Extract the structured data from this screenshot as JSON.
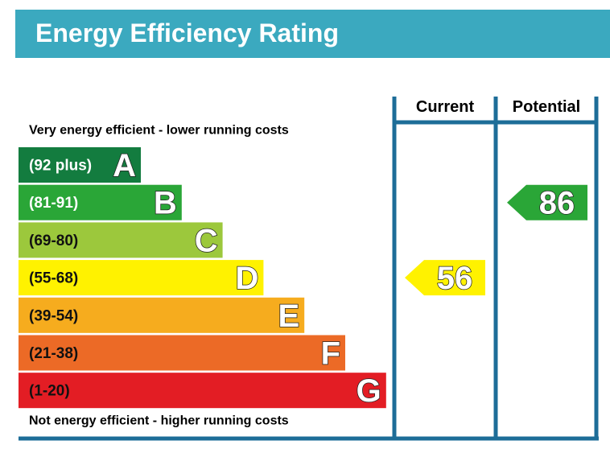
{
  "chart_data": {
    "type": "epc",
    "title": "Energy Efficiency Rating",
    "top_note": "Very energy efficient - lower running costs",
    "bottom_note": "Not energy efficient - higher running costs",
    "columns": [
      "Current",
      "Potential"
    ],
    "bands": [
      {
        "letter": "A",
        "range": "(92 plus)",
        "color": "#137c3f"
      },
      {
        "letter": "B",
        "range": "(81-91)",
        "color": "#2aa637"
      },
      {
        "letter": "C",
        "range": "(69-80)",
        "color": "#9cc83c"
      },
      {
        "letter": "D",
        "range": "(55-68)",
        "color": "#fff200"
      },
      {
        "letter": "E",
        "range": "(39-54)",
        "color": "#f6ac1e"
      },
      {
        "letter": "F",
        "range": "(21-38)",
        "color": "#ec6a26"
      },
      {
        "letter": "G",
        "range": "(1-20)",
        "color": "#e31d24"
      }
    ],
    "current": 56,
    "potential": 86
  }
}
